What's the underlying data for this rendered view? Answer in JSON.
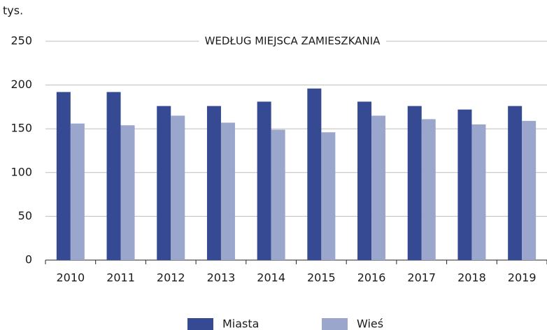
{
  "chart_data": {
    "type": "bar",
    "title": "WEDŁUG MIEJSCA ZAMIESZKANIA",
    "y_label": "tys.",
    "categories": [
      "2010",
      "2011",
      "2012",
      "2013",
      "2014",
      "2015",
      "2016",
      "2017",
      "2018",
      "2019"
    ],
    "series": [
      {
        "name": "Miasta",
        "color": "#354a93",
        "values": [
          192,
          192,
          176,
          176,
          181,
          196,
          181,
          176,
          172,
          176
        ]
      },
      {
        "name": "Wieś",
        "color": "#9ba6cc",
        "values": [
          156,
          154,
          165,
          157,
          149,
          146,
          165,
          161,
          155,
          159
        ]
      }
    ],
    "ylim": [
      0,
      250
    ],
    "yticks": [
      0,
      50,
      100,
      150,
      200,
      250
    ],
    "grid": true,
    "legend": "bottom"
  }
}
